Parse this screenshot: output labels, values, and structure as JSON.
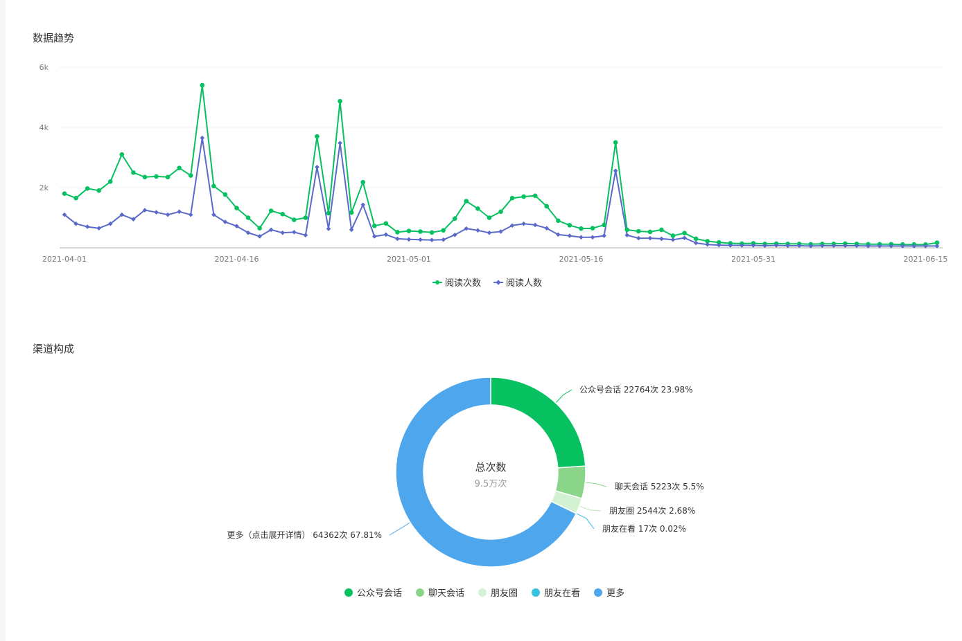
{
  "trend": {
    "title": "数据趋势",
    "legend": [
      {
        "name": "阅读次数",
        "color": "#07c160",
        "marker": "circle"
      },
      {
        "name": "阅读人数",
        "color": "#5b6ac8",
        "marker": "diamond"
      }
    ]
  },
  "channel": {
    "title": "渠道构成",
    "center_label": "总次数",
    "center_value": "9.5万次",
    "legend": [
      {
        "name": "公众号会话",
        "color": "#07c160"
      },
      {
        "name": "聊天会话",
        "color": "#8ad58a"
      },
      {
        "name": "朋友圈",
        "color": "#d3f1d3"
      },
      {
        "name": "朋友在看",
        "color": "#35c1e0"
      },
      {
        "name": "更多",
        "color": "#4ea6ec"
      }
    ]
  },
  "chart_data": [
    {
      "type": "line",
      "title": "数据趋势",
      "x_tick_labels": [
        "2021-04-01",
        "2021-04-16",
        "2021-05-01",
        "2021-05-16",
        "2021-05-31",
        "2021-06-15"
      ],
      "y_tick_labels": [
        "2k",
        "4k",
        "6k"
      ],
      "ylim": [
        0,
        6000
      ],
      "grid": "horizontal",
      "legend_position": "bottom",
      "x_start": "2021-04-01",
      "x_end": "2021-06-16",
      "series": [
        {
          "name": "阅读次数",
          "color": "#07c160",
          "values": [
            1800,
            1650,
            1970,
            1900,
            2200,
            3100,
            2500,
            2350,
            2370,
            2350,
            2650,
            2400,
            5400,
            2050,
            1770,
            1320,
            1000,
            650,
            1230,
            1120,
            930,
            1000,
            3700,
            1150,
            4870,
            1170,
            2180,
            730,
            810,
            520,
            560,
            540,
            510,
            580,
            970,
            1550,
            1300,
            1000,
            1200,
            1650,
            1700,
            1730,
            1380,
            900,
            750,
            640,
            650,
            760,
            3500,
            600,
            550,
            530,
            600,
            400,
            490,
            300,
            220,
            180,
            150,
            140,
            150,
            130,
            140,
            130,
            130,
            120,
            130,
            130,
            140,
            130,
            120,
            120,
            120,
            110,
            110,
            110,
            170
          ]
        },
        {
          "name": "阅读人数",
          "color": "#5b6ac8",
          "values": [
            1100,
            800,
            700,
            650,
            800,
            1100,
            950,
            1250,
            1180,
            1100,
            1200,
            1100,
            3650,
            1100,
            860,
            720,
            500,
            380,
            600,
            500,
            520,
            420,
            2680,
            630,
            3480,
            600,
            1430,
            380,
            440,
            300,
            280,
            270,
            260,
            270,
            430,
            640,
            580,
            500,
            540,
            740,
            800,
            760,
            650,
            440,
            400,
            350,
            350,
            400,
            2560,
            420,
            320,
            320,
            300,
            270,
            330,
            160,
            110,
            90,
            80,
            80,
            80,
            70,
            80,
            70,
            70,
            60,
            70,
            70,
            70,
            70,
            60,
            60,
            60,
            60,
            60,
            60,
            60
          ]
        }
      ]
    },
    {
      "type": "pie",
      "title": "渠道构成",
      "center_label": "总次数",
      "center_value": "9.5万次",
      "slices": [
        {
          "name": "公众号会话",
          "value": 22764,
          "percent": 23.98,
          "label": "公众号会话 22764次 23.98%",
          "color": "#07c160"
        },
        {
          "name": "聊天会话",
          "value": 5223,
          "percent": 5.5,
          "label": "聊天会话 5223次 5.5%",
          "color": "#8ad58a"
        },
        {
          "name": "朋友圈",
          "value": 2544,
          "percent": 2.68,
          "label": "朋友圈 2544次 2.68%",
          "color": "#d3f1d3"
        },
        {
          "name": "朋友在看",
          "value": 17,
          "percent": 0.02,
          "label": "朋友在看 17次 0.02%",
          "color": "#35c1e0"
        },
        {
          "name": "更多",
          "value": 64362,
          "percent": 67.81,
          "label": "更多（点击展开详情） 64362次 67.81%",
          "color": "#4ea6ec"
        }
      ],
      "legend_position": "bottom"
    }
  ]
}
